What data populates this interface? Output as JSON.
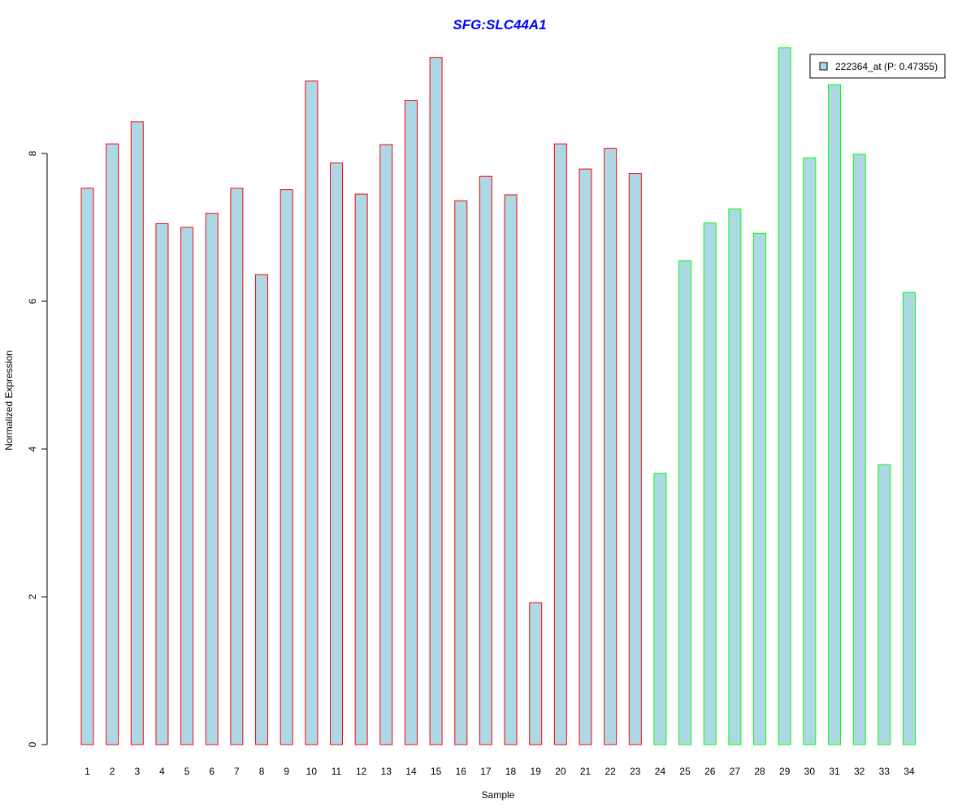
{
  "colors": {
    "bar_fill": "#ADD8E6",
    "group1_border": "#FF0000",
    "group2_border": "#00FF00",
    "title": "#0000FF",
    "axis": "#000000"
  },
  "chart_data": {
    "type": "bar",
    "title": "SFG:SLC44A1",
    "xlabel": "Sample",
    "ylabel": "Normalized Expression",
    "ylim": [
      0,
      9.5
    ],
    "yticks": [
      0,
      2,
      4,
      6,
      8
    ],
    "grid": false,
    "legend_position": "top-right",
    "categories": [
      "1",
      "2",
      "3",
      "4",
      "5",
      "6",
      "7",
      "8",
      "9",
      "10",
      "11",
      "12",
      "13",
      "14",
      "15",
      "16",
      "17",
      "18",
      "19",
      "20",
      "21",
      "22",
      "23",
      "24",
      "25",
      "26",
      "27",
      "28",
      "29",
      "30",
      "31",
      "32",
      "33",
      "34"
    ],
    "series": [
      {
        "name": "222364_at (P: 0.47355)",
        "values": [
          7.53,
          8.13,
          8.43,
          7.05,
          7.0,
          7.19,
          7.53,
          6.36,
          7.51,
          8.98,
          7.87,
          7.45,
          8.12,
          8.72,
          9.3,
          7.36,
          7.69,
          7.44,
          1.92,
          8.13,
          7.79,
          8.07,
          7.73,
          3.67,
          6.55,
          7.06,
          7.25,
          6.92,
          9.43,
          7.94,
          8.93,
          7.99,
          3.79,
          6.12
        ],
        "group": [
          1,
          1,
          1,
          1,
          1,
          1,
          1,
          1,
          1,
          1,
          1,
          1,
          1,
          1,
          1,
          1,
          1,
          1,
          1,
          1,
          1,
          1,
          1,
          2,
          2,
          2,
          2,
          2,
          2,
          2,
          2,
          2,
          2,
          2
        ]
      }
    ]
  }
}
